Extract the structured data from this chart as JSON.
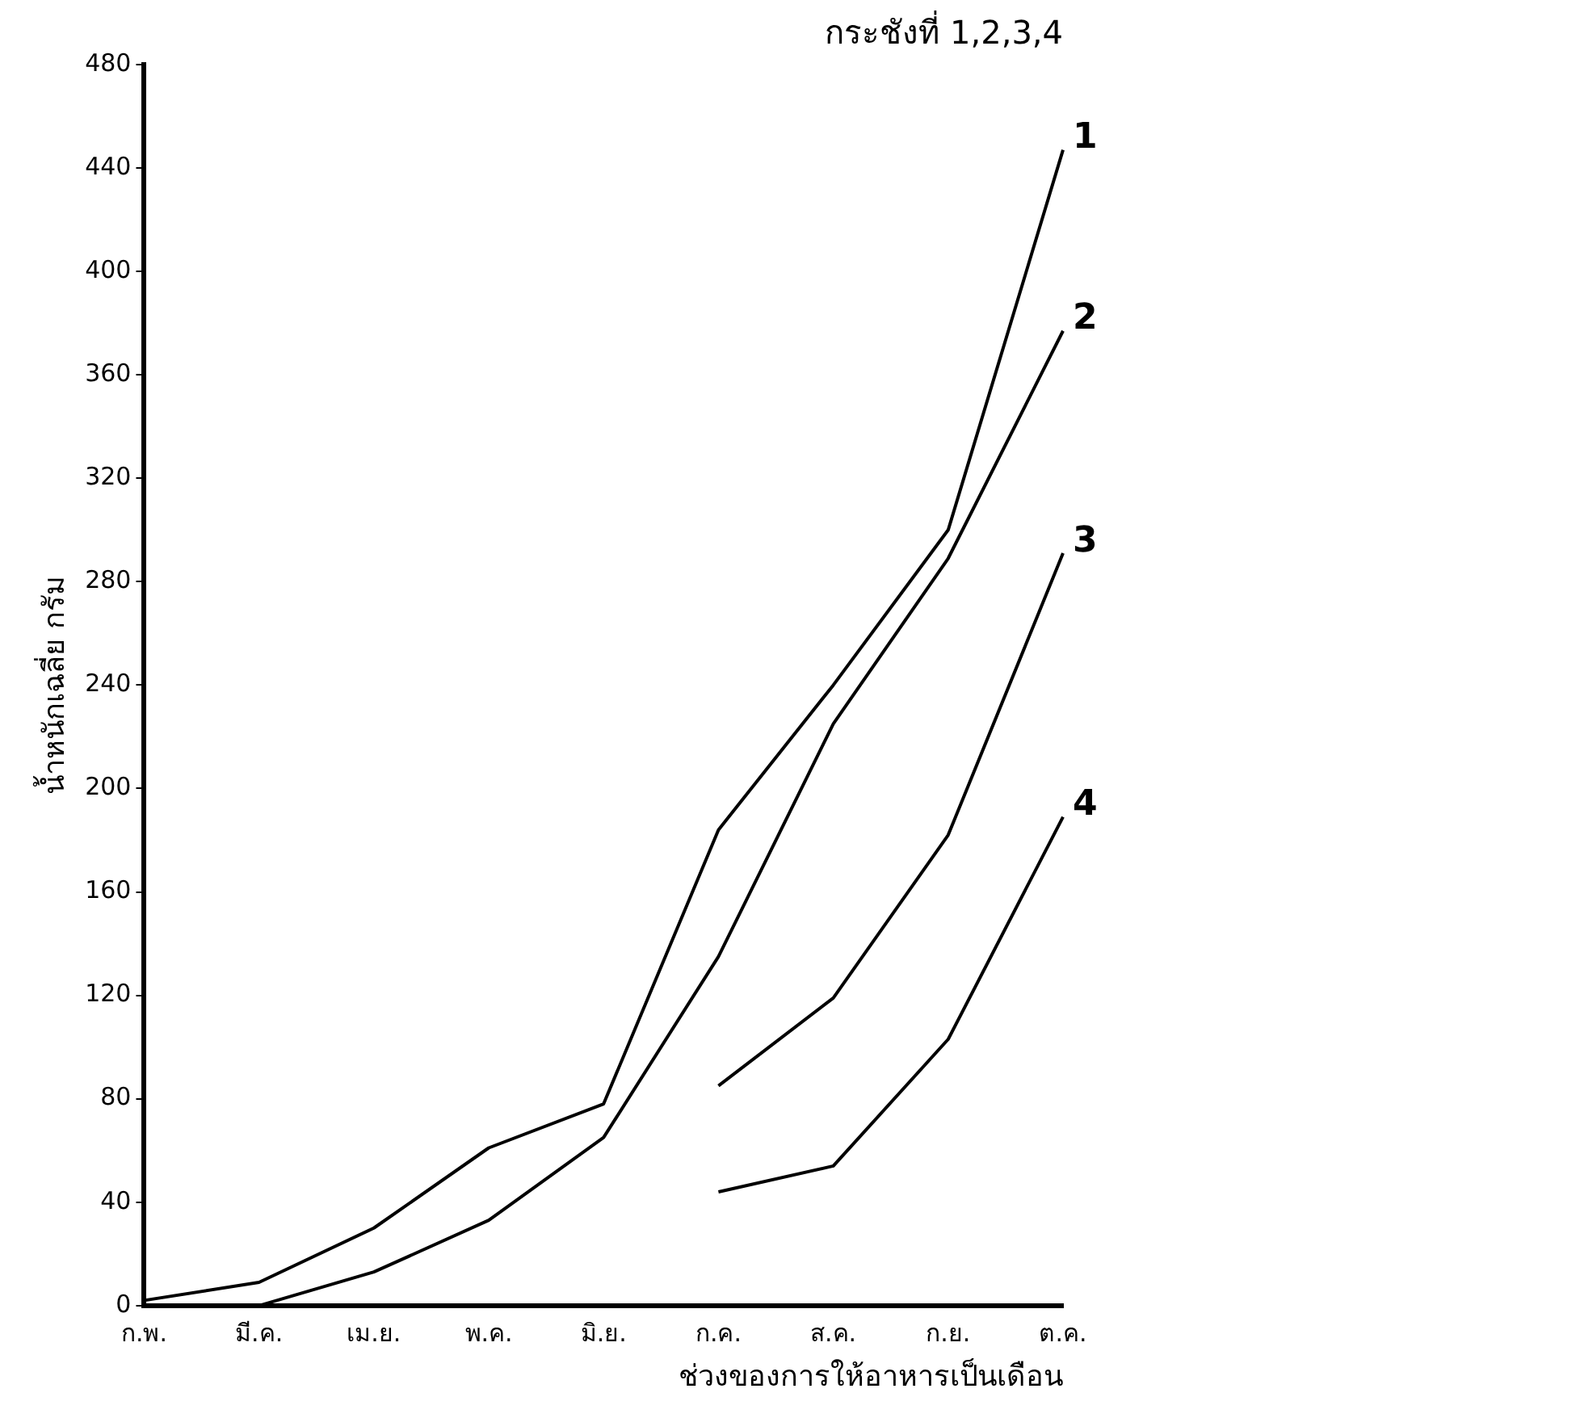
{
  "chart_data": {
    "type": "line",
    "title": "กระชังที่ 1,2,3,4",
    "xlabel": "ช่วงของการให้อาหารเป็นเดือน",
    "ylabel": "น้ำหนักเฉลี่ย กรัม",
    "categories": [
      "ก.พ.",
      "มี.ค.",
      "เม.ย.",
      "พ.ค.",
      "มิ.ย.",
      "ก.ค.",
      "ส.ค.",
      "ก.ย.",
      "ต.ค."
    ],
    "series": [
      {
        "name": "1",
        "color": "#000000",
        "values": [
          2,
          9,
          30,
          61,
          78,
          184,
          240,
          300,
          447
        ]
      },
      {
        "name": "2",
        "color": "#000000",
        "values": [
          null,
          0,
          13,
          33,
          65,
          135,
          225,
          289,
          377
        ]
      },
      {
        "name": "3",
        "color": "#000000",
        "values": [
          null,
          null,
          null,
          null,
          null,
          85,
          119,
          182,
          291
        ]
      },
      {
        "name": "4",
        "color": "#000000",
        "values": [
          null,
          null,
          null,
          null,
          null,
          44,
          54,
          103,
          189
        ]
      }
    ],
    "ylim": [
      0,
      480
    ],
    "yticks": [
      0,
      40,
      80,
      120,
      160,
      200,
      240,
      280,
      320,
      360,
      400,
      440,
      480
    ],
    "grid": false,
    "legend": false,
    "marker": "none",
    "line_style": "solid"
  }
}
